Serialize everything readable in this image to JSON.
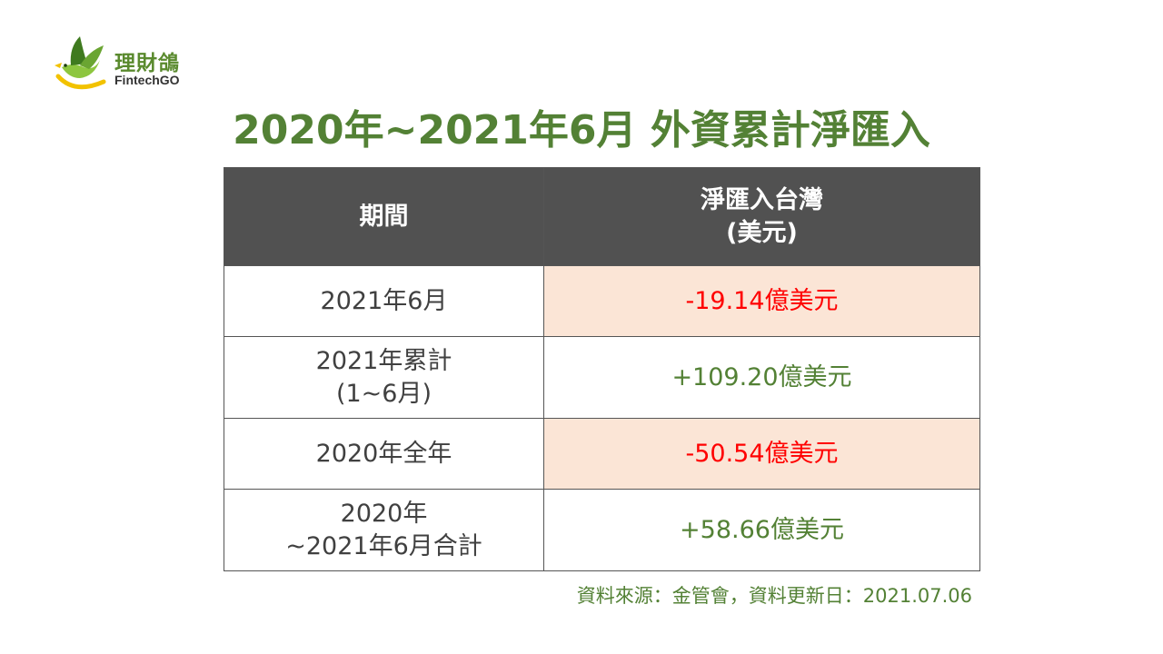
{
  "logo": {
    "name_cn": "理財鴿",
    "name_en": "FintechGO",
    "icon": "green-dove-icon"
  },
  "title": "2020年~2021年6月  外資累計淨匯入",
  "table": {
    "headers": [
      "期間",
      "淨匯入台灣\n(美元)"
    ],
    "rows": [
      {
        "period": "2021年6月",
        "value": "-19.14億美元",
        "sign": "negative"
      },
      {
        "period": "2021年累計\n(1~6月)",
        "value": "+109.20億美元",
        "sign": "positive"
      },
      {
        "period": "2020年全年",
        "value": "-50.54億美元",
        "sign": "negative"
      },
      {
        "period": "2020年\n~2021年6月合計",
        "value": "+58.66億美元",
        "sign": "positive"
      }
    ]
  },
  "source": "資料來源：金管會，資料更新日：2021.07.06",
  "colors": {
    "title_green": "#538135",
    "header_bg": "#515151",
    "negative_text": "#ff0000",
    "negative_bg": "#fbe5d6",
    "positive_text": "#538135"
  }
}
